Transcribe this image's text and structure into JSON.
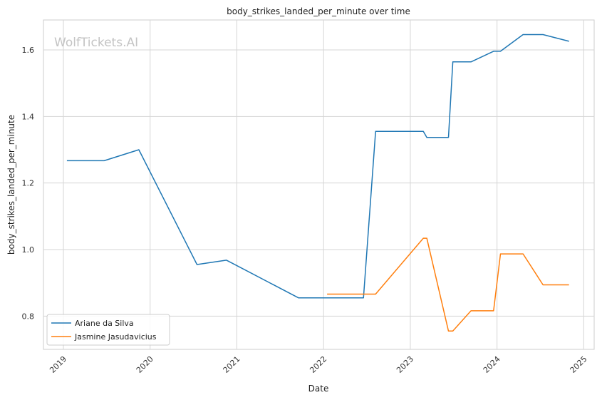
{
  "chart_data": {
    "type": "line",
    "title": "body_strikes_landed_per_minute over time",
    "xlabel": "Date",
    "ylabel": "body_strikes_landed_per_minute",
    "watermark": "WolfTickets.AI",
    "xlim": [
      2018.77,
      2025.12
    ],
    "ylim": [
      0.7,
      1.69
    ],
    "x_ticks": [
      2019,
      2020,
      2021,
      2022,
      2023,
      2024,
      2025
    ],
    "x_tick_labels": [
      "2019",
      "2020",
      "2021",
      "2022",
      "2023",
      "2024",
      "2025"
    ],
    "y_ticks": [
      0.8,
      1.0,
      1.2,
      1.4,
      1.6
    ],
    "y_tick_labels": [
      "0.8",
      "1.0",
      "1.2",
      "1.4",
      "1.6"
    ],
    "grid": true,
    "legend_position": "lower-left",
    "series": [
      {
        "name": "Ariane da Silva",
        "color": "#1f77b4",
        "x": [
          2019.04,
          2019.47,
          2019.87,
          2020.54,
          2020.88,
          2021.71,
          2022.46,
          2022.6,
          2023.15,
          2023.19,
          2023.44,
          2023.49,
          2023.7,
          2023.96,
          2024.04,
          2024.3,
          2024.53,
          2024.83
        ],
        "y": [
          1.267,
          1.267,
          1.3,
          0.955,
          0.968,
          0.855,
          0.855,
          1.355,
          1.355,
          1.337,
          1.337,
          1.564,
          1.564,
          1.596,
          1.596,
          1.646,
          1.646,
          1.626
        ]
      },
      {
        "name": "Jasmine Jasudavicius",
        "color": "#ff7f0e",
        "x": [
          2022.04,
          2022.6,
          2023.15,
          2023.19,
          2023.44,
          2023.49,
          2023.7,
          2023.96,
          2024.04,
          2024.3,
          2024.53,
          2024.83
        ],
        "y": [
          0.866,
          0.866,
          1.034,
          1.034,
          0.755,
          0.755,
          0.816,
          0.816,
          0.987,
          0.987,
          0.894,
          0.894
        ]
      }
    ]
  }
}
